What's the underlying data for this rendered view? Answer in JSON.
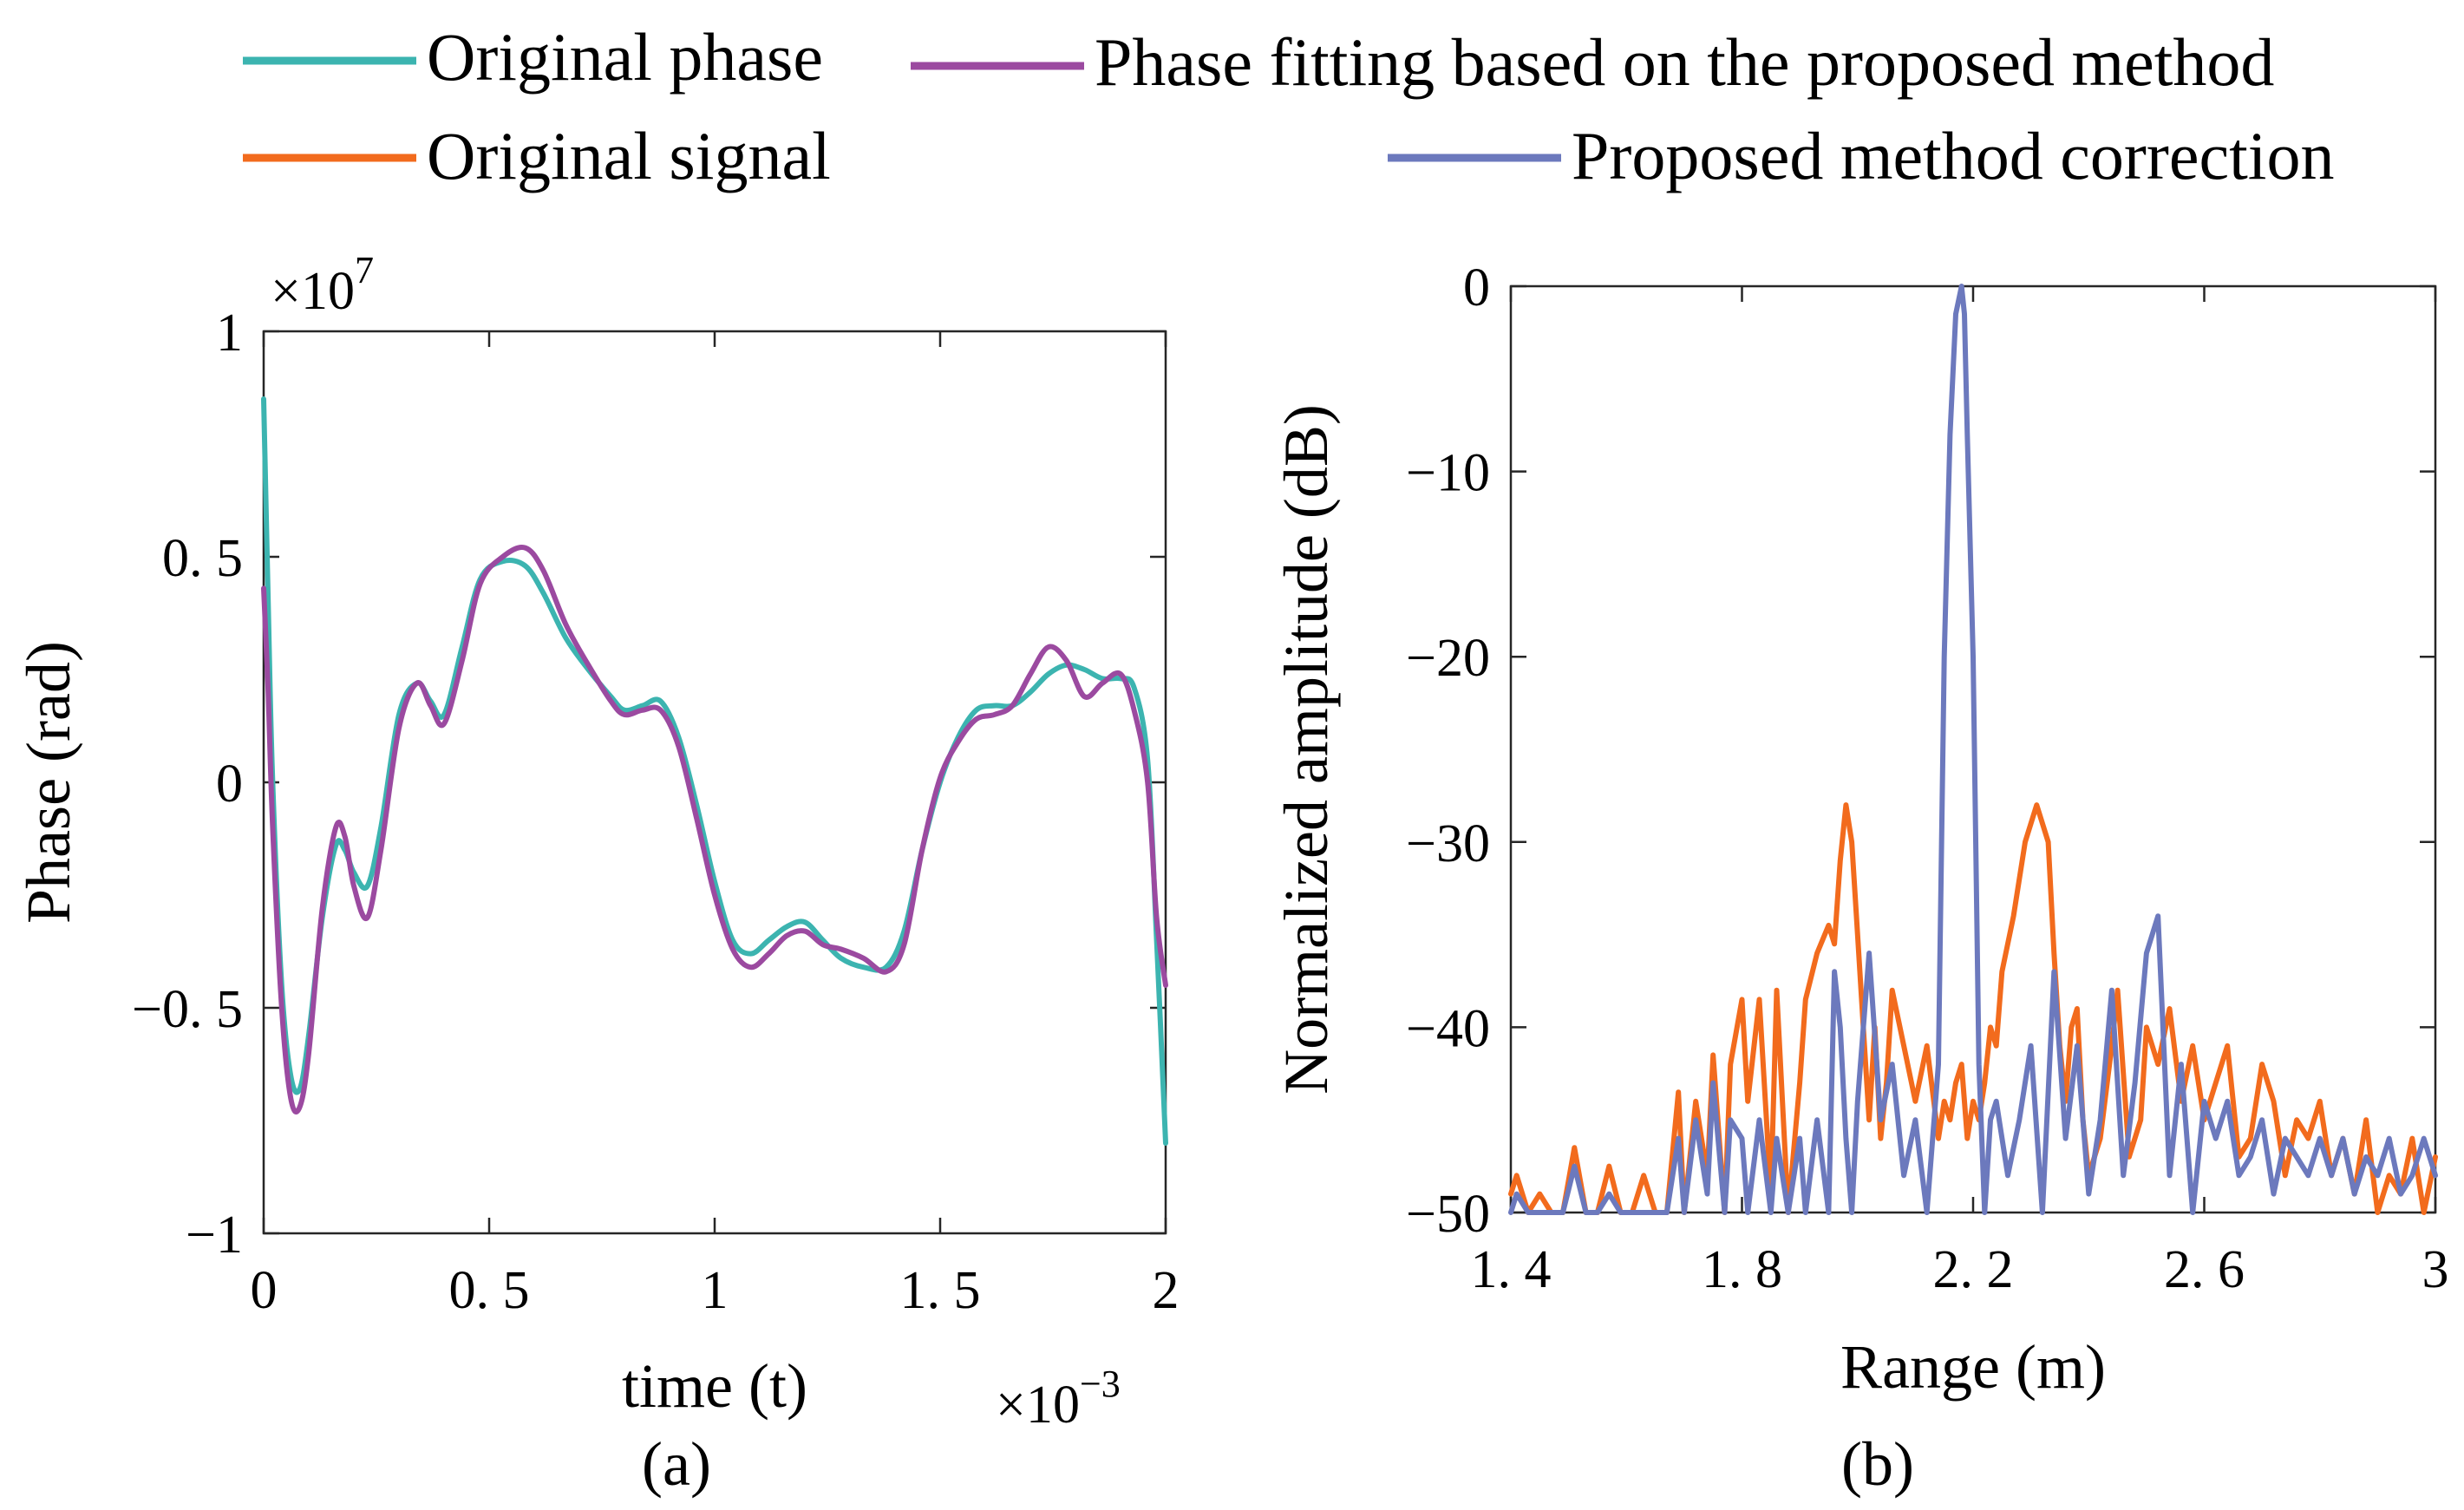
{
  "chart_data": [
    {
      "type": "line",
      "panel_label": "(a)",
      "xlabel": "time (t)",
      "ylabel": "Phase (rad)",
      "x_exponent": "×10",
      "x_exponent_power": "−3",
      "y_exponent": "×10",
      "y_exponent_power": "7",
      "xlim": [
        0,
        2
      ],
      "ylim": [
        -1,
        1
      ],
      "x_ticks": [
        0,
        0.5,
        1,
        1.5,
        2
      ],
      "x_tick_labels": [
        "0",
        "0. 5",
        "1",
        "1. 5",
        "2"
      ],
      "y_ticks": [
        1,
        0.5,
        0,
        -0.5,
        -1
      ],
      "y_tick_labels": [
        "1",
        "0. 5",
        "0",
        "−0. 5",
        "−1"
      ],
      "grid": false,
      "series": [
        {
          "name": "Original phase",
          "color": "#3cb4b0",
          "x": [
            0.0,
            0.01,
            0.02,
            0.04,
            0.06,
            0.08,
            0.1,
            0.13,
            0.16,
            0.18,
            0.2,
            0.23,
            0.26,
            0.3,
            0.34,
            0.37,
            0.4,
            0.44,
            0.48,
            0.53,
            0.58,
            0.62,
            0.67,
            0.72,
            0.77,
            0.8,
            0.84,
            0.88,
            0.92,
            0.96,
            1.0,
            1.04,
            1.08,
            1.12,
            1.16,
            1.2,
            1.24,
            1.28,
            1.33,
            1.38,
            1.42,
            1.46,
            1.5,
            1.54,
            1.58,
            1.62,
            1.66,
            1.7,
            1.74,
            1.78,
            1.82,
            1.86,
            1.9,
            1.93,
            1.96,
            1.98,
            2.0
          ],
          "values": [
            0.85,
            0.4,
            0.0,
            -0.45,
            -0.65,
            -0.68,
            -0.56,
            -0.3,
            -0.14,
            -0.15,
            -0.2,
            -0.23,
            -0.1,
            0.15,
            0.22,
            0.18,
            0.15,
            0.3,
            0.45,
            0.49,
            0.48,
            0.42,
            0.32,
            0.25,
            0.19,
            0.16,
            0.17,
            0.18,
            0.1,
            -0.05,
            -0.22,
            -0.35,
            -0.38,
            -0.35,
            -0.32,
            -0.31,
            -0.35,
            -0.39,
            -0.41,
            -0.41,
            -0.33,
            -0.15,
            0.0,
            0.1,
            0.16,
            0.17,
            0.17,
            0.2,
            0.24,
            0.26,
            0.25,
            0.23,
            0.23,
            0.21,
            0.05,
            -0.35,
            -0.8
          ]
        },
        {
          "name": "Phase fitting based on the proposed method",
          "color": "#9b4aa0",
          "x": [
            0.0,
            0.01,
            0.02,
            0.04,
            0.06,
            0.08,
            0.1,
            0.13,
            0.16,
            0.18,
            0.2,
            0.23,
            0.26,
            0.3,
            0.34,
            0.37,
            0.4,
            0.44,
            0.48,
            0.53,
            0.58,
            0.62,
            0.67,
            0.72,
            0.77,
            0.8,
            0.84,
            0.88,
            0.92,
            0.96,
            1.0,
            1.04,
            1.08,
            1.12,
            1.16,
            1.2,
            1.24,
            1.28,
            1.33,
            1.38,
            1.42,
            1.46,
            1.5,
            1.54,
            1.58,
            1.62,
            1.66,
            1.7,
            1.74,
            1.78,
            1.82,
            1.86,
            1.9,
            1.93,
            1.96,
            1.98,
            2.0
          ],
          "values": [
            0.43,
            0.2,
            -0.1,
            -0.5,
            -0.7,
            -0.72,
            -0.6,
            -0.28,
            -0.1,
            -0.12,
            -0.23,
            -0.3,
            -0.15,
            0.12,
            0.22,
            0.17,
            0.13,
            0.27,
            0.44,
            0.5,
            0.52,
            0.47,
            0.35,
            0.26,
            0.18,
            0.15,
            0.16,
            0.16,
            0.08,
            -0.08,
            -0.25,
            -0.37,
            -0.41,
            -0.38,
            -0.34,
            -0.33,
            -0.36,
            -0.37,
            -0.39,
            -0.42,
            -0.36,
            -0.15,
            0.01,
            0.09,
            0.14,
            0.15,
            0.17,
            0.24,
            0.3,
            0.27,
            0.19,
            0.22,
            0.24,
            0.16,
            0.0,
            -0.3,
            -0.45
          ]
        }
      ]
    },
    {
      "type": "line",
      "panel_label": "(b)",
      "xlabel": "Range (m)",
      "ylabel": "Normalized amplitude (dB)",
      "xlim": [
        1.4,
        3
      ],
      "ylim": [
        -50,
        0
      ],
      "x_ticks": [
        1.4,
        1.8,
        2.2,
        2.6,
        3
      ],
      "x_tick_labels": [
        "1. 4",
        "1. 8",
        "2. 2",
        "2. 6",
        "3"
      ],
      "y_ticks": [
        0,
        -10,
        -20,
        -30,
        -40,
        -50
      ],
      "y_tick_labels": [
        "0",
        "−10",
        "−20",
        "−30",
        "−40",
        "−50"
      ],
      "grid": false,
      "series": [
        {
          "name": "Original signal",
          "color": "#f26b1d",
          "x": [
            1.4,
            1.41,
            1.43,
            1.45,
            1.47,
            1.49,
            1.51,
            1.53,
            1.55,
            1.57,
            1.59,
            1.61,
            1.63,
            1.65,
            1.67,
            1.69,
            1.7,
            1.72,
            1.74,
            1.75,
            1.77,
            1.78,
            1.8,
            1.81,
            1.83,
            1.85,
            1.86,
            1.88,
            1.9,
            1.91,
            1.93,
            1.95,
            1.96,
            1.97,
            1.98,
            1.99,
            2.0,
            2.01,
            2.02,
            2.03,
            2.04,
            2.05,
            2.06,
            2.08,
            2.1,
            2.12,
            2.14,
            2.15,
            2.16,
            2.17,
            2.18,
            2.19,
            2.2,
            2.21,
            2.22,
            2.23,
            2.24,
            2.25,
            2.27,
            2.29,
            2.31,
            2.33,
            2.34,
            2.35,
            2.36,
            2.37,
            2.38,
            2.39,
            2.4,
            2.42,
            2.44,
            2.45,
            2.47,
            2.49,
            2.5,
            2.52,
            2.54,
            2.56,
            2.58,
            2.6,
            2.62,
            2.64,
            2.66,
            2.68,
            2.7,
            2.72,
            2.74,
            2.76,
            2.78,
            2.8,
            2.82,
            2.84,
            2.86,
            2.88,
            2.9,
            2.92,
            2.94,
            2.96,
            2.98,
            3.0
          ],
          "values": [
            -49,
            -48,
            -50,
            -49,
            -50,
            -50,
            -46.5,
            -50,
            -50,
            -47.5,
            -50,
            -50,
            -48,
            -50,
            -50,
            -43.5,
            -50,
            -44,
            -48,
            -41.5,
            -50,
            -42,
            -38.5,
            -44,
            -38.5,
            -49,
            -38,
            -50,
            -43,
            -38.5,
            -36,
            -34.5,
            -35.5,
            -31,
            -28,
            -30,
            -35,
            -40,
            -45,
            -40,
            -46,
            -43,
            -38,
            -41,
            -44,
            -41,
            -46,
            -44,
            -45,
            -43,
            -42,
            -46,
            -44,
            -45,
            -43,
            -40,
            -41,
            -37,
            -34,
            -30,
            -28,
            -30,
            -36,
            -41,
            -44,
            -40,
            -39,
            -45,
            -48,
            -46,
            -41,
            -38,
            -47,
            -45,
            -40,
            -42,
            -39,
            -44,
            -41,
            -45,
            -43,
            -41,
            -47,
            -46,
            -42,
            -44,
            -48,
            -45,
            -46,
            -44,
            -48,
            -46,
            -49,
            -45,
            -50,
            -48,
            -49,
            -46,
            -50,
            -47
          ]
        },
        {
          "name": "Proposed method correction",
          "color": "#6c79bd",
          "x": [
            1.4,
            1.41,
            1.43,
            1.45,
            1.47,
            1.49,
            1.51,
            1.53,
            1.55,
            1.57,
            1.59,
            1.61,
            1.63,
            1.65,
            1.67,
            1.69,
            1.7,
            1.72,
            1.74,
            1.75,
            1.77,
            1.78,
            1.8,
            1.81,
            1.83,
            1.85,
            1.86,
            1.88,
            1.9,
            1.91,
            1.93,
            1.95,
            1.96,
            1.97,
            1.98,
            1.99,
            2.0,
            2.02,
            2.04,
            2.06,
            2.08,
            2.1,
            2.12,
            2.14,
            2.15,
            2.16,
            2.17,
            2.18,
            2.185,
            2.19,
            2.2,
            2.21,
            2.22,
            2.23,
            2.24,
            2.26,
            2.28,
            2.3,
            2.32,
            2.34,
            2.36,
            2.38,
            2.4,
            2.42,
            2.44,
            2.46,
            2.48,
            2.5,
            2.52,
            2.54,
            2.56,
            2.58,
            2.6,
            2.62,
            2.64,
            2.66,
            2.68,
            2.7,
            2.72,
            2.74,
            2.76,
            2.78,
            2.8,
            2.82,
            2.84,
            2.86,
            2.88,
            2.9,
            2.92,
            2.94,
            2.96,
            2.98,
            3.0
          ],
          "values": [
            -50,
            -49,
            -50,
            -50,
            -50,
            -50,
            -47.5,
            -50,
            -50,
            -49,
            -50,
            -50,
            -50,
            -50,
            -50,
            -46,
            -50,
            -45,
            -49,
            -43,
            -50,
            -45,
            -46,
            -50,
            -45,
            -50,
            -46,
            -50,
            -46,
            -50,
            -45,
            -50,
            -37,
            -40,
            -46,
            -50,
            -44,
            -36,
            -45,
            -42,
            -48,
            -45,
            -50,
            -42,
            -20,
            -8,
            -1.5,
            0,
            -1.5,
            -8,
            -20,
            -42,
            -50,
            -45,
            -44,
            -48,
            -45,
            -41,
            -50,
            -37,
            -46,
            -41,
            -49,
            -45,
            -38,
            -48,
            -43,
            -36,
            -34,
            -48,
            -42,
            -50,
            -44,
            -46,
            -44,
            -48,
            -47,
            -45,
            -49,
            -46,
            -47,
            -48,
            -46,
            -48,
            -46,
            -49,
            -47,
            -48,
            -46,
            -49,
            -48,
            -46,
            -48
          ]
        }
      ]
    }
  ],
  "legend": {
    "items": [
      {
        "label": "Original phase",
        "color": "#3cb4b0"
      },
      {
        "label": "Phase fitting based on the proposed method",
        "color": "#9b4aa0"
      },
      {
        "label": "Original signal",
        "color": "#f26b1d"
      },
      {
        "label": "Proposed method correction",
        "color": "#6c79bd"
      }
    ]
  }
}
